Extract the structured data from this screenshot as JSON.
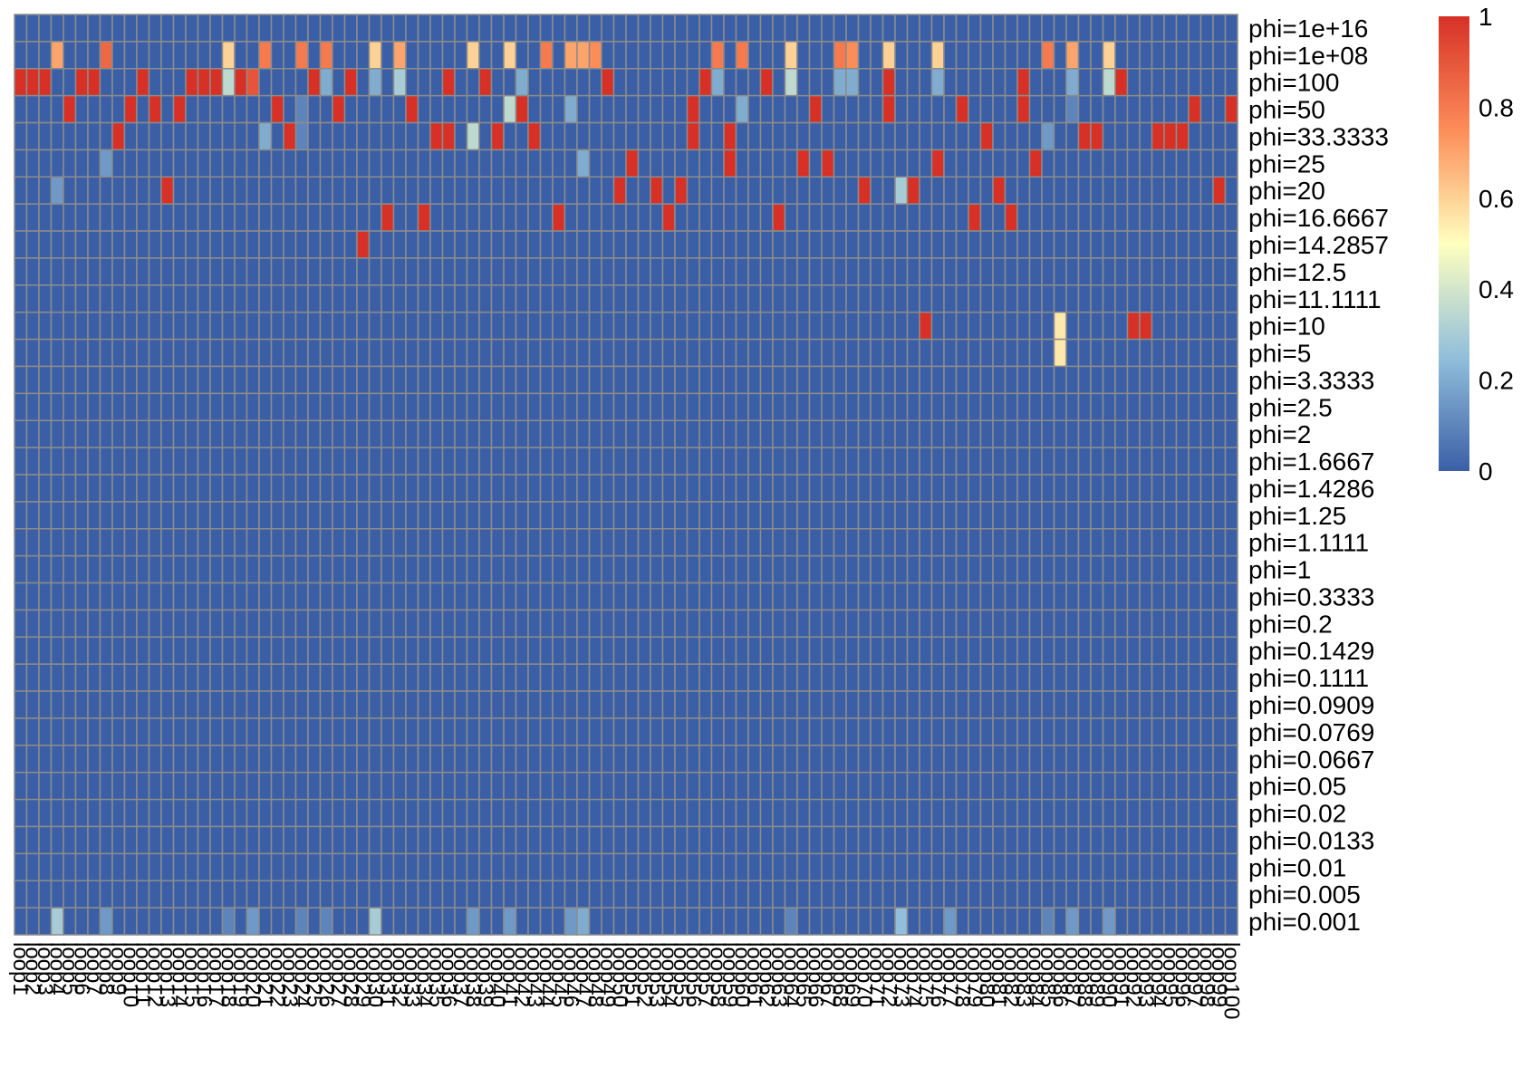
{
  "chart_data": {
    "type": "heatmap",
    "title": "",
    "xlabel": "",
    "ylabel": "",
    "rows": [
      "phi=1e+16",
      "phi=1e+08",
      "phi=100",
      "phi=50",
      "phi=33.3333",
      "phi=25",
      "phi=20",
      "phi=16.6667",
      "phi=14.2857",
      "phi=12.5",
      "phi=11.1111",
      "phi=10",
      "phi=5",
      "phi=3.3333",
      "phi=2.5",
      "phi=2",
      "phi=1.6667",
      "phi=1.4286",
      "phi=1.25",
      "phi=1.1111",
      "phi=1",
      "phi=0.3333",
      "phi=0.2",
      "phi=0.1429",
      "phi=0.1111",
      "phi=0.0909",
      "phi=0.0769",
      "phi=0.0667",
      "phi=0.05",
      "phi=0.02",
      "phi=0.0133",
      "phi=0.01",
      "phi=0.005",
      "phi=0.001"
    ],
    "columns": [
      "loop1",
      "loop2",
      "loop3",
      "loop4",
      "loop5",
      "loop6",
      "loop7",
      "loop8",
      "loop9",
      "loop10",
      "loop11",
      "loop12",
      "loop13",
      "loop14",
      "loop15",
      "loop16",
      "loop17",
      "loop18",
      "loop19",
      "loop20",
      "loop21",
      "loop22",
      "loop23",
      "loop24",
      "loop25",
      "loop26",
      "loop27",
      "loop28",
      "loop29",
      "loop30",
      "loop31",
      "loop32",
      "loop33",
      "loop34",
      "loop35",
      "loop36",
      "loop37",
      "loop38",
      "loop39",
      "loop40",
      "loop41",
      "loop42",
      "loop43",
      "loop44",
      "loop45",
      "loop46",
      "loop47",
      "loop48",
      "loop49",
      "loop50",
      "loop51",
      "loop52",
      "loop53",
      "loop54",
      "loop55",
      "loop56",
      "loop57",
      "loop58",
      "loop59",
      "loop60",
      "loop61",
      "loop62",
      "loop63",
      "loop64",
      "loop65",
      "loop66",
      "loop67",
      "loop68",
      "loop69",
      "loop70",
      "loop71",
      "loop72",
      "loop73",
      "loop74",
      "loop75",
      "loop76",
      "loop77",
      "loop78",
      "loop79",
      "loop80",
      "loop81",
      "loop82",
      "loop83",
      "loop84",
      "loop85",
      "loop86",
      "loop87",
      "loop88",
      "loop89",
      "loop90",
      "loop91",
      "loop92",
      "loop93",
      "loop94",
      "loop95",
      "loop96",
      "loop97",
      "loop98",
      "loop99",
      "loop100"
    ],
    "values": {
      "phi=1e+08": {
        "loop4": 0.7,
        "loop8": 0.85,
        "loop18": 0.6,
        "loop21": 0.8,
        "loop24": 0.8,
        "loop26": 0.8,
        "loop30": 0.6,
        "loop32": 0.7,
        "loop38": 0.6,
        "loop41": 0.6,
        "loop44": 0.8,
        "loop46": 0.7,
        "loop47": 0.7,
        "loop48": 0.75,
        "loop58": 0.8,
        "loop60": 0.8,
        "loop64": 0.6,
        "loop68": 0.8,
        "loop69": 0.75,
        "loop72": 0.6,
        "loop76": 0.6,
        "loop85": 0.8,
        "loop87": 0.7,
        "loop90": 0.6
      },
      "phi=100": {
        "loop1": 1,
        "loop2": 1,
        "loop3": 1,
        "loop6": 1,
        "loop7": 1,
        "loop11": 1,
        "loop15": 1,
        "loop16": 1,
        "loop17": 1,
        "loop18": 0.35,
        "loop19": 1,
        "loop20": 0.9,
        "loop25": 1,
        "loop26": 0.2,
        "loop28": 1,
        "loop30": 0.2,
        "loop32": 0.3,
        "loop36": 1,
        "loop39": 1,
        "loop42": 0.2,
        "loop49": 1,
        "loop57": 1,
        "loop58": 0.2,
        "loop62": 1,
        "loop64": 0.35,
        "loop68": 0.2,
        "loop69": 0.2,
        "loop72": 1,
        "loop76": 0.2,
        "loop83": 1,
        "loop87": 0.2,
        "loop90": 0.35,
        "loop91": 1
      },
      "phi=50": {
        "loop5": 1,
        "loop10": 1,
        "loop12": 1,
        "loop14": 1,
        "loop22": 1,
        "loop24": 0.1,
        "loop27": 1,
        "loop33": 1,
        "loop41": 0.35,
        "loop42": 1,
        "loop46": 0.2,
        "loop56": 1,
        "loop60": 0.2,
        "loop66": 1,
        "loop72": 1,
        "loop78": 1,
        "loop83": 1,
        "loop87": 0.1,
        "loop97": 1,
        "loop100": 1
      },
      "phi=33.3333": {
        "loop9": 1,
        "loop21": 0.2,
        "loop23": 1,
        "loop24": 0.1,
        "loop35": 1,
        "loop36": 1,
        "loop38": 0.35,
        "loop40": 1,
        "loop43": 1,
        "loop56": 1,
        "loop59": 1,
        "loop80": 1,
        "loop85": 0.15,
        "loop88": 1,
        "loop89": 1,
        "loop94": 1,
        "loop95": 1,
        "loop96": 1
      },
      "phi=25": {
        "loop8": 0.15,
        "loop47": 0.2,
        "loop51": 1,
        "loop59": 1,
        "loop65": 1,
        "loop67": 1,
        "loop76": 1,
        "loop84": 1
      },
      "phi=20": {
        "loop4": 0.15,
        "loop13": 1,
        "loop50": 1,
        "loop53": 1,
        "loop55": 1,
        "loop70": 1,
        "loop73": 0.3,
        "loop74": 1,
        "loop81": 1,
        "loop99": 1
      },
      "phi=16.6667": {
        "loop31": 1,
        "loop34": 1,
        "loop45": 1,
        "loop54": 1,
        "loop63": 1,
        "loop79": 1,
        "loop82": 1
      },
      "phi=14.2857": {
        "loop29": 1
      },
      "phi=10": {
        "loop75": 1,
        "loop86": 0.55,
        "loop92": 1,
        "loop93": 1
      },
      "phi=5": {
        "loop86": 0.55
      },
      "phi=0.001": {
        "loop4": 0.3,
        "loop8": 0.15,
        "loop18": 0.1,
        "loop20": 0.15,
        "loop24": 0.1,
        "loop26": 0.1,
        "loop30": 0.3,
        "loop38": 0.15,
        "loop41": 0.15,
        "loop46": 0.15,
        "loop47": 0.2,
        "loop64": 0.1,
        "loop73": 0.25,
        "loop77": 0.15,
        "loop85": 0.1,
        "loop87": 0.15,
        "loop90": 0.15
      }
    },
    "range": [
      0,
      1
    ],
    "colorscale": [
      "#3B5FA6",
      "#91BFDB",
      "#FFFFBF",
      "#FC8D59",
      "#D73027"
    ],
    "grid": true,
    "cell_border_color": "#8C8C8C",
    "legend": {
      "position": "right",
      "ticks": [
        "0",
        "0.2",
        "0.4",
        "0.6",
        "0.8",
        "1"
      ]
    }
  }
}
